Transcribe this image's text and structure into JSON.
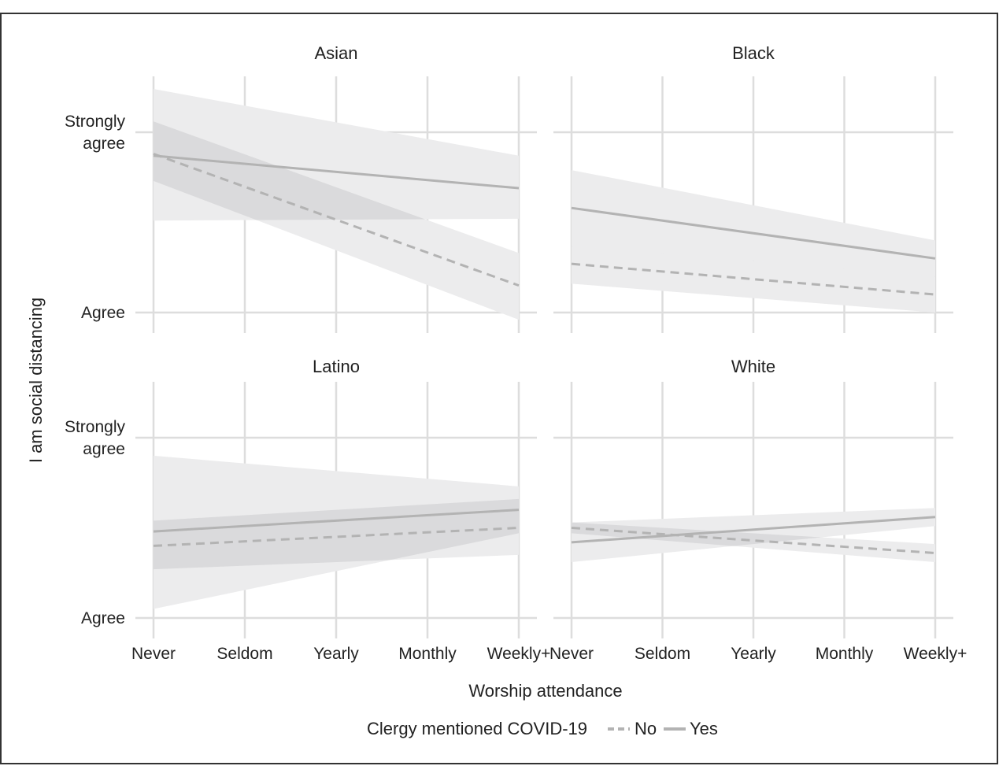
{
  "colors": {
    "frame": "#333333",
    "grid": "#dddddd",
    "band_no": "#ececed",
    "band_yes": "#ececed",
    "band_overlap": "#c8c8c8",
    "line_no": "#b3b3b3",
    "line_yes": "#b3b3b3",
    "text": "#222222"
  },
  "chart_data": {
    "type": "line",
    "xlabel": "Worship attendance",
    "ylabel": "I am social distancing",
    "x_categories": [
      "Never",
      "Seldom",
      "Yearly",
      "Monthly",
      "Weekly+"
    ],
    "y_ticks": [
      {
        "value": 1,
        "lines": [
          "Agree"
        ]
      },
      {
        "value": 2,
        "lines": [
          "Strongly",
          "agree"
        ]
      }
    ],
    "ylim": [
      0.88,
      2.31
    ],
    "grid": true,
    "legend": {
      "title": "Clergy mentioned COVID-19",
      "position": "bottom",
      "entries": [
        {
          "label": "No",
          "style": "dashed"
        },
        {
          "label": "Yes",
          "style": "solid"
        }
      ]
    },
    "panels": [
      {
        "title": "Asian",
        "series": [
          {
            "name": "No",
            "x": [
              0,
              4
            ],
            "y": [
              1.88,
              1.15
            ],
            "band_lower": [
              1.73,
              0.96
            ],
            "band_upper": [
              2.06,
              1.33
            ]
          },
          {
            "name": "Yes",
            "x": [
              0,
              4
            ],
            "y": [
              1.87,
              1.69
            ],
            "band_lower": [
              1.51,
              1.52
            ],
            "band_upper": [
              2.24,
              1.87
            ]
          }
        ]
      },
      {
        "title": "Black",
        "series": [
          {
            "name": "No",
            "x": [
              0,
              4
            ],
            "y": [
              1.27,
              1.1
            ],
            "band_lower": [
              1.16,
              1.0
            ],
            "band_upper": [
              1.37,
              1.2
            ]
          },
          {
            "name": "Yes",
            "x": [
              0,
              4
            ],
            "y": [
              1.58,
              1.3
            ],
            "band_lower": [
              1.37,
              1.2
            ],
            "band_upper": [
              1.79,
              1.4
            ]
          }
        ]
      },
      {
        "title": "Latino",
        "series": [
          {
            "name": "No",
            "x": [
              0,
              4
            ],
            "y": [
              1.4,
              1.5
            ],
            "band_lower": [
              1.27,
              1.35
            ],
            "band_upper": [
              1.54,
              1.66
            ]
          },
          {
            "name": "Yes",
            "x": [
              0,
              4
            ],
            "y": [
              1.48,
              1.6
            ],
            "band_lower": [
              1.05,
              1.47
            ],
            "band_upper": [
              1.9,
              1.73
            ]
          }
        ]
      },
      {
        "title": "White",
        "series": [
          {
            "name": "No",
            "x": [
              0,
              4
            ],
            "y": [
              1.5,
              1.36
            ],
            "band_lower": [
              1.47,
              1.31
            ],
            "band_upper": [
              1.53,
              1.41
            ]
          },
          {
            "name": "Yes",
            "x": [
              0,
              4
            ],
            "y": [
              1.42,
              1.56
            ],
            "band_lower": [
              1.31,
              1.51
            ],
            "band_upper": [
              1.53,
              1.61
            ]
          }
        ]
      }
    ]
  }
}
